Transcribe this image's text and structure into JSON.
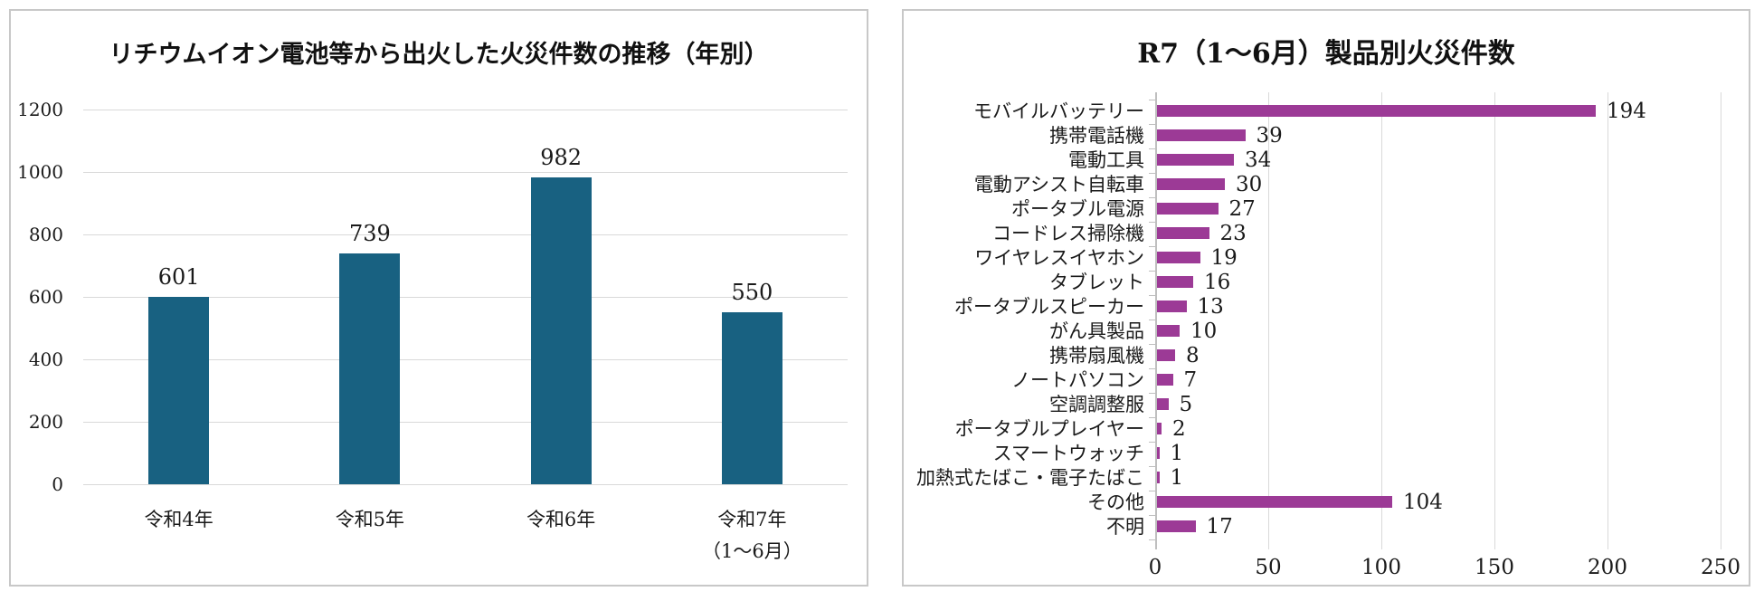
{
  "page": {
    "background": "#ffffff",
    "panel_border_color": "#c8c8c8",
    "gridline_color": "#d9d9d9",
    "axis_line_color": "#bfbfbf",
    "text_color": "#1a1a1a"
  },
  "chart_data": [
    {
      "type": "bar",
      "orientation": "vertical",
      "title": "リチウムイオン電池等から出火した火災件数の推移（年別）",
      "categories": [
        "令和4年",
        "令和5年",
        "令和6年",
        "令和7年\n（1～6月）"
      ],
      "values": [
        601,
        739,
        982,
        550
      ],
      "bar_color": "#186181",
      "ylim": [
        0,
        1200
      ],
      "yticks": [
        0,
        200,
        400,
        600,
        800,
        1000,
        1200
      ],
      "grid": "horizontal",
      "legend": "none",
      "data_labels": true
    },
    {
      "type": "bar",
      "orientation": "horizontal",
      "title": "R7（1～6月）製品別火災件数",
      "categories": [
        "モバイルバッテリー",
        "携帯電話機",
        "電動工具",
        "電動アシスト自転車",
        "ポータブル電源",
        "コードレス掃除機",
        "ワイヤレスイヤホン",
        "タブレット",
        "ポータブルスピーカー",
        "がん具製品",
        "携帯扇風機",
        "ノートパソコン",
        "空調調整服",
        "ポータブルプレイヤー",
        "スマートウォッチ",
        "加熱式たばこ・電子たばこ",
        "その他",
        "不明"
      ],
      "values": [
        194,
        39,
        34,
        30,
        27,
        23,
        19,
        16,
        13,
        10,
        8,
        7,
        5,
        2,
        1,
        1,
        104,
        17
      ],
      "bar_color": "#9c3a96",
      "xlim": [
        0,
        250
      ],
      "xticks": [
        0,
        50,
        100,
        150,
        200,
        250
      ],
      "grid": "vertical",
      "legend": "none",
      "data_labels": true
    }
  ]
}
